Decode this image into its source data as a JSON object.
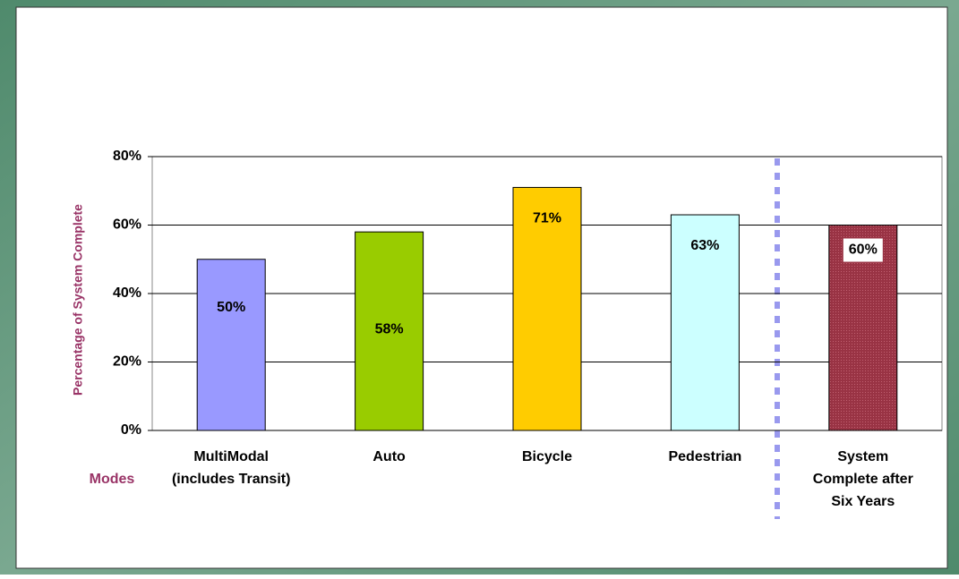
{
  "chart_data": {
    "type": "bar",
    "categories": [
      [
        "MultiModal",
        "(includes Transit)"
      ],
      [
        "Auto"
      ],
      [
        "Bicycle"
      ],
      [
        "Pedestrian"
      ],
      [
        "System",
        "Complete after",
        "Six Years"
      ]
    ],
    "values": [
      50,
      58,
      71,
      63,
      60
    ],
    "value_labels": [
      "50%",
      "58%",
      "71%",
      "63%",
      "60%"
    ],
    "colors": [
      "#9999ff",
      "#99cc00",
      "#ffcc00",
      "#ccffff",
      "#993344"
    ],
    "ylim": [
      0,
      80
    ],
    "yticks": [
      {
        "value": 0,
        "label": "0%"
      },
      {
        "value": 20,
        "label": "20%"
      },
      {
        "value": 40,
        "label": "40%"
      },
      {
        "value": 60,
        "label": "60%"
      },
      {
        "value": 80,
        "label": "80%"
      }
    ],
    "grid": true,
    "xlabel": "Modes",
    "ylabel": "Percentage of System Complete"
  }
}
